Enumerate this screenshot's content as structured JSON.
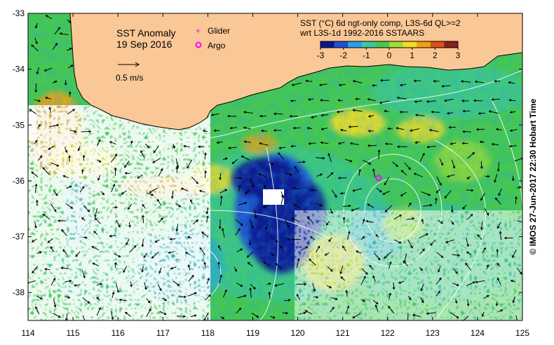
{
  "map": {
    "title": "SST Anomaly",
    "date": "19 Sep 2016",
    "velocity_scale_label": "0.5 m/s",
    "markers": [
      {
        "label": "Glider",
        "symbol": "+",
        "color": "#ff00ff"
      },
      {
        "label": "Argo",
        "symbol": "✱",
        "color": "#ff00ff"
      }
    ],
    "product_line1": "SST (°C) 6d ngt-only comp, L3S-6d QL>=2",
    "product_line2": "wrt L3S-1d 1992-2016 SSTAARS",
    "colorbar": {
      "min": -3,
      "max": 3,
      "ticks": [
        "-3",
        "-2",
        "-1",
        "0",
        "1",
        "2",
        "3"
      ],
      "colors": [
        "#0a1a8c",
        "#1e50d2",
        "#28a0e6",
        "#3cc8a0",
        "#46c850",
        "#a0dc32",
        "#f0dc28",
        "#f0a014",
        "#dc5014",
        "#8c1e1e"
      ]
    },
    "land_color": "#fac896",
    "x_axis": {
      "min": 114,
      "max": 125,
      "ticks": [
        "114",
        "115",
        "116",
        "117",
        "118",
        "119",
        "120",
        "121",
        "122",
        "123",
        "124",
        "125"
      ]
    },
    "y_axis": {
      "min": -38.5,
      "max": -33,
      "ticks": [
        "-33",
        "-34",
        "-35",
        "-36",
        "-37",
        "-38"
      ]
    },
    "argo_position": {
      "lon": 121.8,
      "lat": -35.95
    },
    "credit": "© IMOS 27-Jun-2017 22:30 Hobart Time"
  }
}
